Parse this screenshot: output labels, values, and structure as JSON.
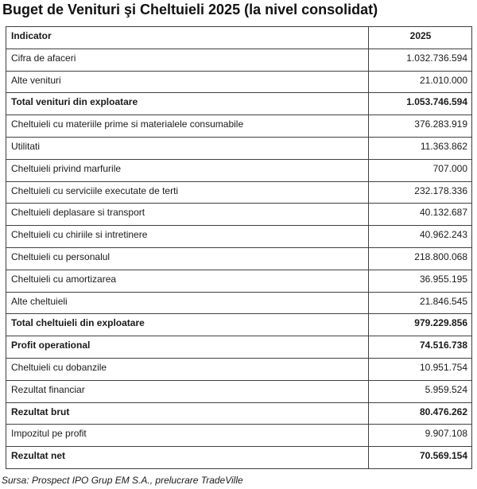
{
  "title": "Buget de Venituri şi Cheltuieli 2025 (la nivel consolidat)",
  "table": {
    "header": {
      "indicator": "Indicator",
      "year": "2025"
    },
    "rows": [
      {
        "label": "Cifra de afaceri",
        "value": "1.032.736.594",
        "bold": false
      },
      {
        "label": "Alte venituri",
        "value": "21.010.000",
        "bold": false
      },
      {
        "label": "Total venituri din exploatare",
        "value": "1.053.746.594",
        "bold": true
      },
      {
        "label": "Cheltuieli cu materiile prime si materialele consumabile",
        "value": "376.283.919",
        "bold": false
      },
      {
        "label": "Utilitati",
        "value": "11.363.862",
        "bold": false
      },
      {
        "label": "Cheltuieli privind marfurile",
        "value": "707.000",
        "bold": false
      },
      {
        "label": "Cheltuieli cu serviciile executate de terti",
        "value": "232.178.336",
        "bold": false
      },
      {
        "label": "Cheltuieli deplasare si transport",
        "value": "40.132.687",
        "bold": false
      },
      {
        "label": "Cheltuieli cu chiriile si intretinere",
        "value": "40.962.243",
        "bold": false
      },
      {
        "label": "Cheltuieli cu personalul",
        "value": "218.800.068",
        "bold": false
      },
      {
        "label": "Cheltuieli cu amortizarea",
        "value": "36.955.195",
        "bold": false
      },
      {
        "label": "Alte cheltuieli",
        "value": "21.846.545",
        "bold": false
      },
      {
        "label": "Total cheltuieli din exploatare",
        "value": "979.229.856",
        "bold": true
      },
      {
        "label": "Profit operational",
        "value": "74.516.738",
        "bold": true
      },
      {
        "label": "Cheltuieli cu dobanzile",
        "value": "10.951.754",
        "bold": false
      },
      {
        "label": "Rezultat financiar",
        "value": "5.959.524",
        "bold": false
      },
      {
        "label": "Rezultat brut",
        "value": "80.476.262",
        "bold": true
      },
      {
        "label": "Impozitul pe profit",
        "value": "9.907.108",
        "bold": false
      },
      {
        "label": "Rezultat net",
        "value": "70.569.154",
        "bold": true
      }
    ]
  },
  "source": "Sursa: Prospect IPO Grup EM S.A., prelucrare TradeVille",
  "colors": {
    "border": "#404040",
    "text": "#1a1a1a",
    "background": "#ffffff"
  }
}
